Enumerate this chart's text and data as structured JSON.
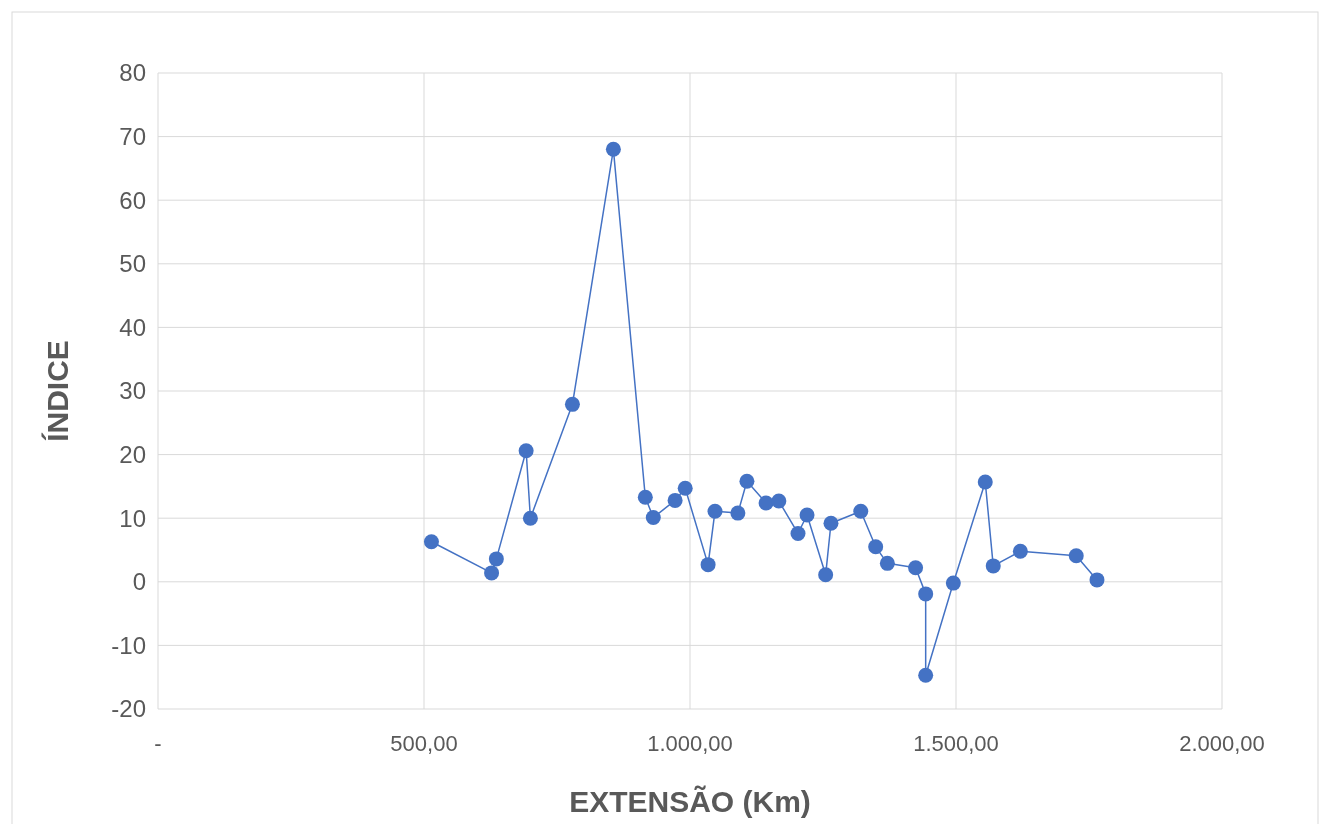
{
  "chart_data": {
    "type": "line",
    "xlabel": "EXTENSÃO (Km)",
    "ylabel": "ÍNDICE",
    "marker": "circle",
    "grid": true,
    "xlim": [
      0,
      2000
    ],
    "xticks": [
      {
        "value": 0,
        "label": "-"
      },
      {
        "value": 500,
        "label": "500,00"
      },
      {
        "value": 1000,
        "label": "1.000,00"
      },
      {
        "value": 1500,
        "label": "1.500,00"
      },
      {
        "value": 2000,
        "label": "2.000,00"
      }
    ],
    "ylim": [
      -20,
      80
    ],
    "yticks": [
      -20,
      -10,
      0,
      10,
      20,
      30,
      40,
      50,
      60,
      70,
      80
    ],
    "x": [
      514,
      627,
      636,
      692,
      700,
      779,
      856,
      916,
      931,
      972,
      991,
      1034,
      1047,
      1090,
      1107,
      1143,
      1167,
      1203,
      1220,
      1255,
      1265,
      1321,
      1349,
      1371,
      1424,
      1443,
      1443,
      1495,
      1555,
      1570,
      1621,
      1726,
      1765
    ],
    "series": [
      {
        "color": "#4472c4",
        "values": [
          6.3,
          1.4,
          3.6,
          20.6,
          10,
          27.9,
          68,
          13.3,
          10.1,
          12.8,
          14.7,
          2.7,
          11.1,
          10.8,
          15.8,
          12.4,
          12.7,
          7.6,
          10.5,
          1.1,
          9.2,
          11.1,
          5.5,
          2.9,
          2.2,
          -1.9,
          -14.7,
          -0.2,
          15.7,
          2.5,
          4.8,
          4.1,
          0.3
        ]
      }
    ]
  }
}
